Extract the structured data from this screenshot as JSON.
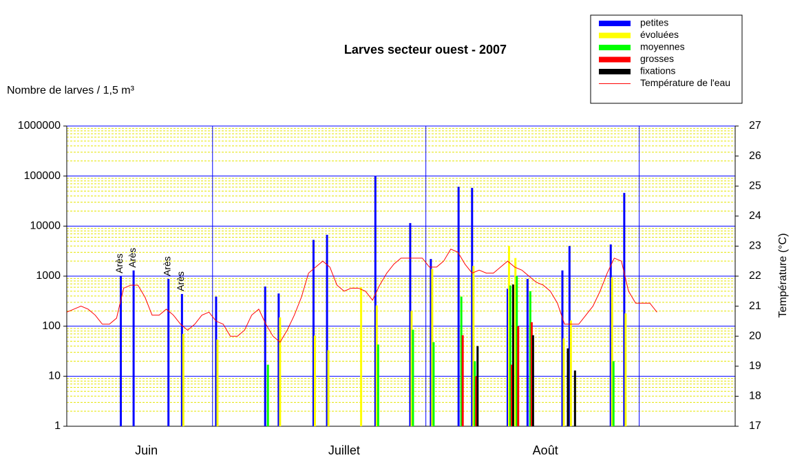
{
  "chart_data": {
    "type": "bar",
    "title": "Larves secteur ouest - 2007",
    "ylabel": "Nombre de larves / 1,5 m³",
    "y2label": "Température (°C)",
    "yscale": "log",
    "ylim": [
      1,
      1000000
    ],
    "yticks": [
      1,
      10,
      100,
      1000,
      10000,
      100000,
      1000000
    ],
    "y2lim": [
      17,
      27
    ],
    "y2ticks": [
      17,
      18,
      19,
      20,
      21,
      22,
      23,
      24,
      25,
      26,
      27
    ],
    "xlim": [
      0,
      94
    ],
    "xticks": [
      {
        "value": 11.2,
        "label": "Juin"
      },
      {
        "value": 39,
        "label": "Juillet"
      },
      {
        "value": 67.3,
        "label": "Août"
      }
    ],
    "xgrid": [
      20.5,
      50.5,
      80.5
    ],
    "grid": true,
    "minor_grid": true,
    "legend": "top-right",
    "x": [
      7.6,
      9.4,
      14.3,
      16.2,
      21.0,
      27.9,
      29.8,
      34.7,
      36.6,
      41.2,
      43.4,
      48.3,
      51.2,
      55.1,
      57.0,
      62.0,
      62.9,
      64.8,
      69.7,
      70.7,
      76.5,
      78.4
    ],
    "annotations": [
      {
        "text": "Arès",
        "x": 7.6,
        "y": 1000
      },
      {
        "text": "Arès",
        "x": 9.4,
        "y": 1300
      },
      {
        "text": "Arès",
        "x": 14.3,
        "y": 880
      },
      {
        "text": "Arès",
        "x": 16.2,
        "y": 440
      }
    ],
    "series": [
      {
        "name": "petites",
        "color": "#0000ff",
        "values": [
          1000,
          1300,
          880,
          440,
          390,
          620,
          450,
          5300,
          6700,
          null,
          100000,
          11500,
          2200,
          61000,
          58000,
          560,
          null,
          880,
          1300,
          4000,
          4300,
          46000
        ]
      },
      {
        "name": "évoluées",
        "color": "#ffff00",
        "values": [
          null,
          null,
          null,
          70,
          54,
          null,
          150,
          65,
          33,
          600,
          260,
          200,
          1400,
          null,
          1600,
          4000,
          2300,
          null,
          57,
          130,
          950,
          180
        ]
      },
      {
        "name": "moyennes",
        "color": "#00ff00",
        "values": [
          null,
          null,
          null,
          null,
          null,
          17,
          null,
          null,
          null,
          null,
          43,
          85,
          48,
          390,
          20,
          650,
          1000,
          500,
          null,
          null,
          20,
          null
        ]
      },
      {
        "name": "grosses",
        "color": "#ff0000",
        "values": [
          null,
          null,
          null,
          null,
          null,
          null,
          null,
          null,
          null,
          null,
          null,
          null,
          null,
          66,
          10,
          17,
          100,
          120,
          null,
          null,
          null,
          null
        ]
      },
      {
        "name": "fixations",
        "color": "#000000",
        "values": [
          null,
          null,
          null,
          null,
          null,
          null,
          null,
          null,
          null,
          null,
          null,
          null,
          null,
          null,
          40,
          680,
          null,
          66,
          36,
          13,
          null,
          null
        ]
      },
      {
        "name": "Température de l'eau",
        "color": "#ff0000",
        "type": "line",
        "axis": "y2",
        "x": [
          0,
          1,
          2,
          3,
          4,
          5,
          6,
          7,
          8,
          9,
          10,
          11,
          12,
          13,
          14,
          15,
          16,
          17,
          18,
          19,
          20,
          21,
          22,
          23,
          24,
          25,
          26,
          27,
          28,
          29,
          30,
          31,
          32,
          33,
          34,
          35,
          36,
          37,
          38,
          39,
          40,
          41,
          42,
          43,
          44,
          45,
          46,
          47,
          48,
          49,
          50,
          51,
          52,
          53,
          54,
          55,
          56,
          57,
          58,
          59,
          60,
          61,
          62,
          63,
          64,
          65,
          66,
          67,
          68,
          69,
          70,
          71,
          72,
          73,
          74,
          75,
          76,
          77,
          78,
          79,
          80,
          81,
          82,
          83
        ],
        "values": [
          20.8,
          20.9,
          21.0,
          20.9,
          20.7,
          20.4,
          20.4,
          20.6,
          21.6,
          21.7,
          21.7,
          21.3,
          20.7,
          20.7,
          20.9,
          20.7,
          20.4,
          20.2,
          20.4,
          20.7,
          20.8,
          20.5,
          20.4,
          20.0,
          20.0,
          20.2,
          20.7,
          20.9,
          20.4,
          20.0,
          19.8,
          20.2,
          20.7,
          21.3,
          22.1,
          22.3,
          22.5,
          22.3,
          21.7,
          21.5,
          21.6,
          21.6,
          21.5,
          21.2,
          21.7,
          22.1,
          22.4,
          22.6,
          22.6,
          22.6,
          22.6,
          22.3,
          22.3,
          22.5,
          22.9,
          22.8,
          22.4,
          22.1,
          22.2,
          22.1,
          22.1,
          22.3,
          22.5,
          22.3,
          22.2,
          22.0,
          21.8,
          21.7,
          21.5,
          21.1,
          20.4,
          20.4,
          20.4,
          20.7,
          21.0,
          21.5,
          22.1,
          22.6,
          22.5,
          21.5,
          21.1,
          21.1,
          21.1,
          20.8
        ]
      }
    ]
  }
}
